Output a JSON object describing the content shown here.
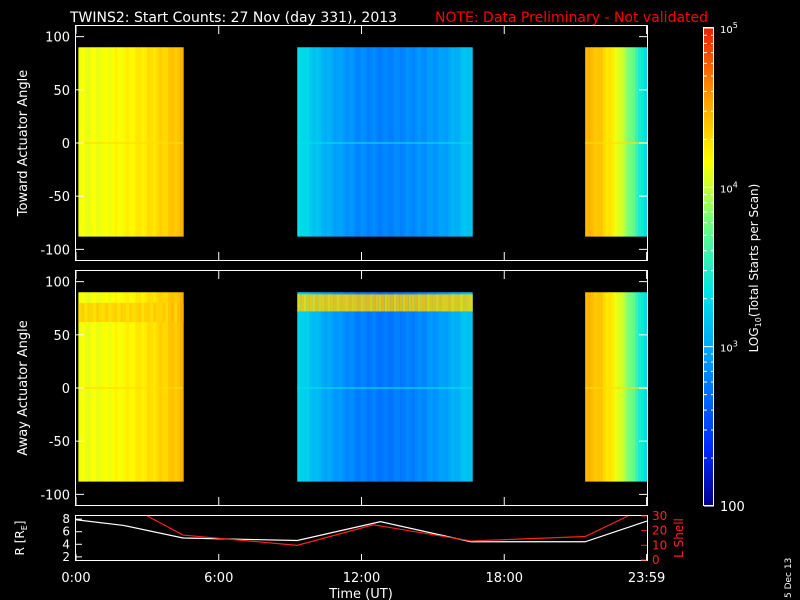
{
  "header": {
    "title": "TWINS2: Start Counts: 27 Nov (day 331), 2013",
    "note": "NOTE: Data Preliminary - Not validated"
  },
  "footer": {
    "date_stamp": "5 Dec 13"
  },
  "colors": {
    "background": "#000000",
    "axes": "#ffffff",
    "note_text": "#ff0000",
    "r_trace": "#ffffff",
    "lshell_trace": "#ff2020"
  },
  "chart_data": [
    {
      "id": "toward",
      "type": "heatmap",
      "ylabel": "Toward Actuator Angle",
      "ylim": [
        -110,
        110
      ],
      "yticks": [
        100,
        50,
        0,
        -50,
        -100
      ],
      "xlim_hours": [
        0,
        24
      ],
      "angle_range": [
        -88,
        90
      ],
      "data_blocks": [
        {
          "start_hr": 0.1,
          "end_hr": 4.5,
          "log10_counts_start": 4.12,
          "log10_counts_end": 4.45
        },
        {
          "start_hr": 9.3,
          "end_hr": 16.65,
          "log10_counts_profile": [
            3.35,
            3.05,
            2.85,
            2.8,
            2.85,
            2.95,
            3.2
          ]
        },
        {
          "start_hr": 21.4,
          "end_hr": 24.0,
          "log10_counts_start": 4.45,
          "log10_counts_end": 3.2
        }
      ]
    },
    {
      "id": "away",
      "type": "heatmap",
      "ylabel": "Away Actuator Angle",
      "ylim": [
        -110,
        110
      ],
      "yticks": [
        100,
        50,
        0,
        -50,
        -100
      ],
      "xlim_hours": [
        0,
        24
      ],
      "angle_range": [
        -88,
        90
      ],
      "data_blocks": [
        {
          "start_hr": 0.1,
          "end_hr": 4.5,
          "log10_counts_start": 4.12,
          "log10_counts_end": 4.45,
          "high_band_angles": [
            62,
            80
          ]
        },
        {
          "start_hr": 9.3,
          "end_hr": 16.65,
          "log10_counts_profile": [
            3.3,
            3.0,
            2.8,
            2.75,
            2.8,
            2.95,
            3.2
          ],
          "high_band_angles": [
            72,
            88
          ]
        },
        {
          "start_hr": 21.4,
          "end_hr": 24.0,
          "log10_counts_start": 4.45,
          "log10_counts_end": 3.2
        }
      ]
    },
    {
      "id": "orbit",
      "type": "line",
      "ylabel": "R [RE]",
      "ylabel_main": "R [R",
      "ylabel_sub": "E",
      "ylabel_end": "]",
      "y2label": "L Shell",
      "ylim": [
        1.5,
        8.5
      ],
      "yticks": [
        2,
        4,
        6,
        8
      ],
      "y2lim": [
        0,
        30
      ],
      "y2ticks": [
        0,
        10,
        20,
        30
      ],
      "xlabel": "Time (UT)",
      "xticks_hours": [
        0,
        6,
        12,
        18,
        23.983
      ],
      "xtick_labels": [
        "0:00",
        "6:00",
        "12:00",
        "18:00",
        "23:59"
      ],
      "series": [
        {
          "name": "R",
          "x_hours": [
            0,
            2,
            4.5,
            9.3,
            12.8,
            16.6,
            21.4,
            24
          ],
          "values": [
            7.9,
            7.0,
            5.0,
            4.6,
            7.6,
            4.4,
            4.4,
            7.7
          ]
        },
        {
          "name": "L Shell",
          "x_hours": [
            3.0,
            4.5,
            9.3,
            12.5,
            16.6,
            21.4,
            23.2
          ],
          "values": [
            30,
            17,
            10,
            24,
            13,
            16,
            30
          ]
        }
      ]
    }
  ],
  "colorbar": {
    "label": "LOG10(Total Starts per Scan)",
    "label_main": "LOG",
    "label_sub": "10",
    "label_rest": "(Total Starts per Scan)",
    "range_log": [
      2,
      5
    ],
    "ticks": [
      {
        "log": 5,
        "base": "10",
        "exp": "5"
      },
      {
        "log": 4,
        "base": "10",
        "exp": "4"
      },
      {
        "log": 3,
        "base": "10",
        "exp": "3"
      },
      {
        "log": 2,
        "base": "100",
        "exp": ""
      }
    ]
  }
}
